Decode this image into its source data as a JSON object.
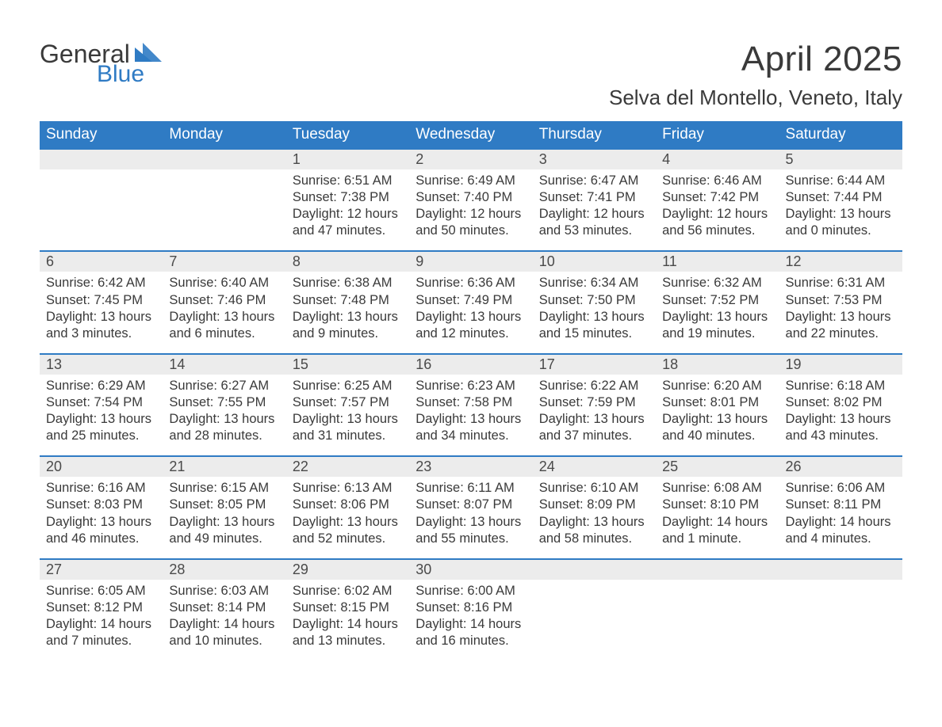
{
  "logo": {
    "text_main": "General",
    "text_sub": "Blue",
    "main_color": "#3a3a3a",
    "sub_color": "#2f7bc4"
  },
  "title": "April 2025",
  "location": "Selva del Montello, Veneto, Italy",
  "colors": {
    "header_bg": "#2f7bc4",
    "header_text": "#ffffff",
    "daynum_bg": "#ececec",
    "divider": "#2f7bc4",
    "body_text": "#3a3a3a",
    "page_bg": "#ffffff"
  },
  "typography": {
    "month_title_fontsize": 44,
    "location_fontsize": 26,
    "weekday_fontsize": 19,
    "daynum_fontsize": 18,
    "cell_fontsize": 16.5,
    "font_family": "Arial"
  },
  "weekday_headers": [
    "Sunday",
    "Monday",
    "Tuesday",
    "Wednesday",
    "Thursday",
    "Friday",
    "Saturday"
  ],
  "days": {
    "1": {
      "sunrise": "6:51 AM",
      "sunset": "7:38 PM",
      "daylight": "12 hours and 47 minutes."
    },
    "2": {
      "sunrise": "6:49 AM",
      "sunset": "7:40 PM",
      "daylight": "12 hours and 50 minutes."
    },
    "3": {
      "sunrise": "6:47 AM",
      "sunset": "7:41 PM",
      "daylight": "12 hours and 53 minutes."
    },
    "4": {
      "sunrise": "6:46 AM",
      "sunset": "7:42 PM",
      "daylight": "12 hours and 56 minutes."
    },
    "5": {
      "sunrise": "6:44 AM",
      "sunset": "7:44 PM",
      "daylight": "13 hours and 0 minutes."
    },
    "6": {
      "sunrise": "6:42 AM",
      "sunset": "7:45 PM",
      "daylight": "13 hours and 3 minutes."
    },
    "7": {
      "sunrise": "6:40 AM",
      "sunset": "7:46 PM",
      "daylight": "13 hours and 6 minutes."
    },
    "8": {
      "sunrise": "6:38 AM",
      "sunset": "7:48 PM",
      "daylight": "13 hours and 9 minutes."
    },
    "9": {
      "sunrise": "6:36 AM",
      "sunset": "7:49 PM",
      "daylight": "13 hours and 12 minutes."
    },
    "10": {
      "sunrise": "6:34 AM",
      "sunset": "7:50 PM",
      "daylight": "13 hours and 15 minutes."
    },
    "11": {
      "sunrise": "6:32 AM",
      "sunset": "7:52 PM",
      "daylight": "13 hours and 19 minutes."
    },
    "12": {
      "sunrise": "6:31 AM",
      "sunset": "7:53 PM",
      "daylight": "13 hours and 22 minutes."
    },
    "13": {
      "sunrise": "6:29 AM",
      "sunset": "7:54 PM",
      "daylight": "13 hours and 25 minutes."
    },
    "14": {
      "sunrise": "6:27 AM",
      "sunset": "7:55 PM",
      "daylight": "13 hours and 28 minutes."
    },
    "15": {
      "sunrise": "6:25 AM",
      "sunset": "7:57 PM",
      "daylight": "13 hours and 31 minutes."
    },
    "16": {
      "sunrise": "6:23 AM",
      "sunset": "7:58 PM",
      "daylight": "13 hours and 34 minutes."
    },
    "17": {
      "sunrise": "6:22 AM",
      "sunset": "7:59 PM",
      "daylight": "13 hours and 37 minutes."
    },
    "18": {
      "sunrise": "6:20 AM",
      "sunset": "8:01 PM",
      "daylight": "13 hours and 40 minutes."
    },
    "19": {
      "sunrise": "6:18 AM",
      "sunset": "8:02 PM",
      "daylight": "13 hours and 43 minutes."
    },
    "20": {
      "sunrise": "6:16 AM",
      "sunset": "8:03 PM",
      "daylight": "13 hours and 46 minutes."
    },
    "21": {
      "sunrise": "6:15 AM",
      "sunset": "8:05 PM",
      "daylight": "13 hours and 49 minutes."
    },
    "22": {
      "sunrise": "6:13 AM",
      "sunset": "8:06 PM",
      "daylight": "13 hours and 52 minutes."
    },
    "23": {
      "sunrise": "6:11 AM",
      "sunset": "8:07 PM",
      "daylight": "13 hours and 55 minutes."
    },
    "24": {
      "sunrise": "6:10 AM",
      "sunset": "8:09 PM",
      "daylight": "13 hours and 58 minutes."
    },
    "25": {
      "sunrise": "6:08 AM",
      "sunset": "8:10 PM",
      "daylight": "14 hours and 1 minute."
    },
    "26": {
      "sunrise": "6:06 AM",
      "sunset": "8:11 PM",
      "daylight": "14 hours and 4 minutes."
    },
    "27": {
      "sunrise": "6:05 AM",
      "sunset": "8:12 PM",
      "daylight": "14 hours and 7 minutes."
    },
    "28": {
      "sunrise": "6:03 AM",
      "sunset": "8:14 PM",
      "daylight": "14 hours and 10 minutes."
    },
    "29": {
      "sunrise": "6:02 AM",
      "sunset": "8:15 PM",
      "daylight": "14 hours and 13 minutes."
    },
    "30": {
      "sunrise": "6:00 AM",
      "sunset": "8:16 PM",
      "daylight": "14 hours and 16 minutes."
    }
  },
  "labels": {
    "sunrise": "Sunrise: ",
    "sunset": "Sunset: ",
    "daylight": "Daylight: "
  },
  "grid": {
    "first_weekday_index": 2,
    "num_days": 30,
    "weeks": [
      [
        null,
        null,
        1,
        2,
        3,
        4,
        5
      ],
      [
        6,
        7,
        8,
        9,
        10,
        11,
        12
      ],
      [
        13,
        14,
        15,
        16,
        17,
        18,
        19
      ],
      [
        20,
        21,
        22,
        23,
        24,
        25,
        26
      ],
      [
        27,
        28,
        29,
        30,
        null,
        null,
        null
      ]
    ]
  }
}
